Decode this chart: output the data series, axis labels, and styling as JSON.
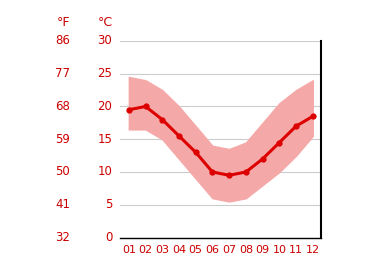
{
  "months": [
    1,
    2,
    3,
    4,
    5,
    6,
    7,
    8,
    9,
    10,
    11,
    12
  ],
  "avg_temp_c": [
    19.5,
    20.0,
    18.0,
    15.5,
    13.0,
    10.0,
    9.5,
    10.0,
    12.0,
    14.5,
    17.0,
    18.5
  ],
  "max_temp_c": [
    24.5,
    24.0,
    22.5,
    20.0,
    17.0,
    14.0,
    13.5,
    14.5,
    17.5,
    20.5,
    22.5,
    24.0
  ],
  "min_temp_c": [
    16.5,
    16.5,
    15.0,
    12.0,
    9.0,
    6.0,
    5.5,
    6.0,
    8.0,
    10.0,
    12.5,
    15.5
  ],
  "month_labels": [
    "01",
    "02",
    "03",
    "04",
    "05",
    "06",
    "07",
    "08",
    "09",
    "10",
    "11",
    "12"
  ],
  "ylim_c": [
    0,
    30
  ],
  "yticks_c": [
    0,
    5,
    10,
    15,
    20,
    25,
    30
  ],
  "yticks_f": [
    32,
    41,
    50,
    59,
    68,
    77,
    86
  ],
  "line_color": "#dd0000",
  "band_color": "#f5a8a8",
  "grid_color": "#cccccc",
  "label_color": "#cc0000",
  "bg_color": "#ffffff",
  "spine_color": "#000000"
}
